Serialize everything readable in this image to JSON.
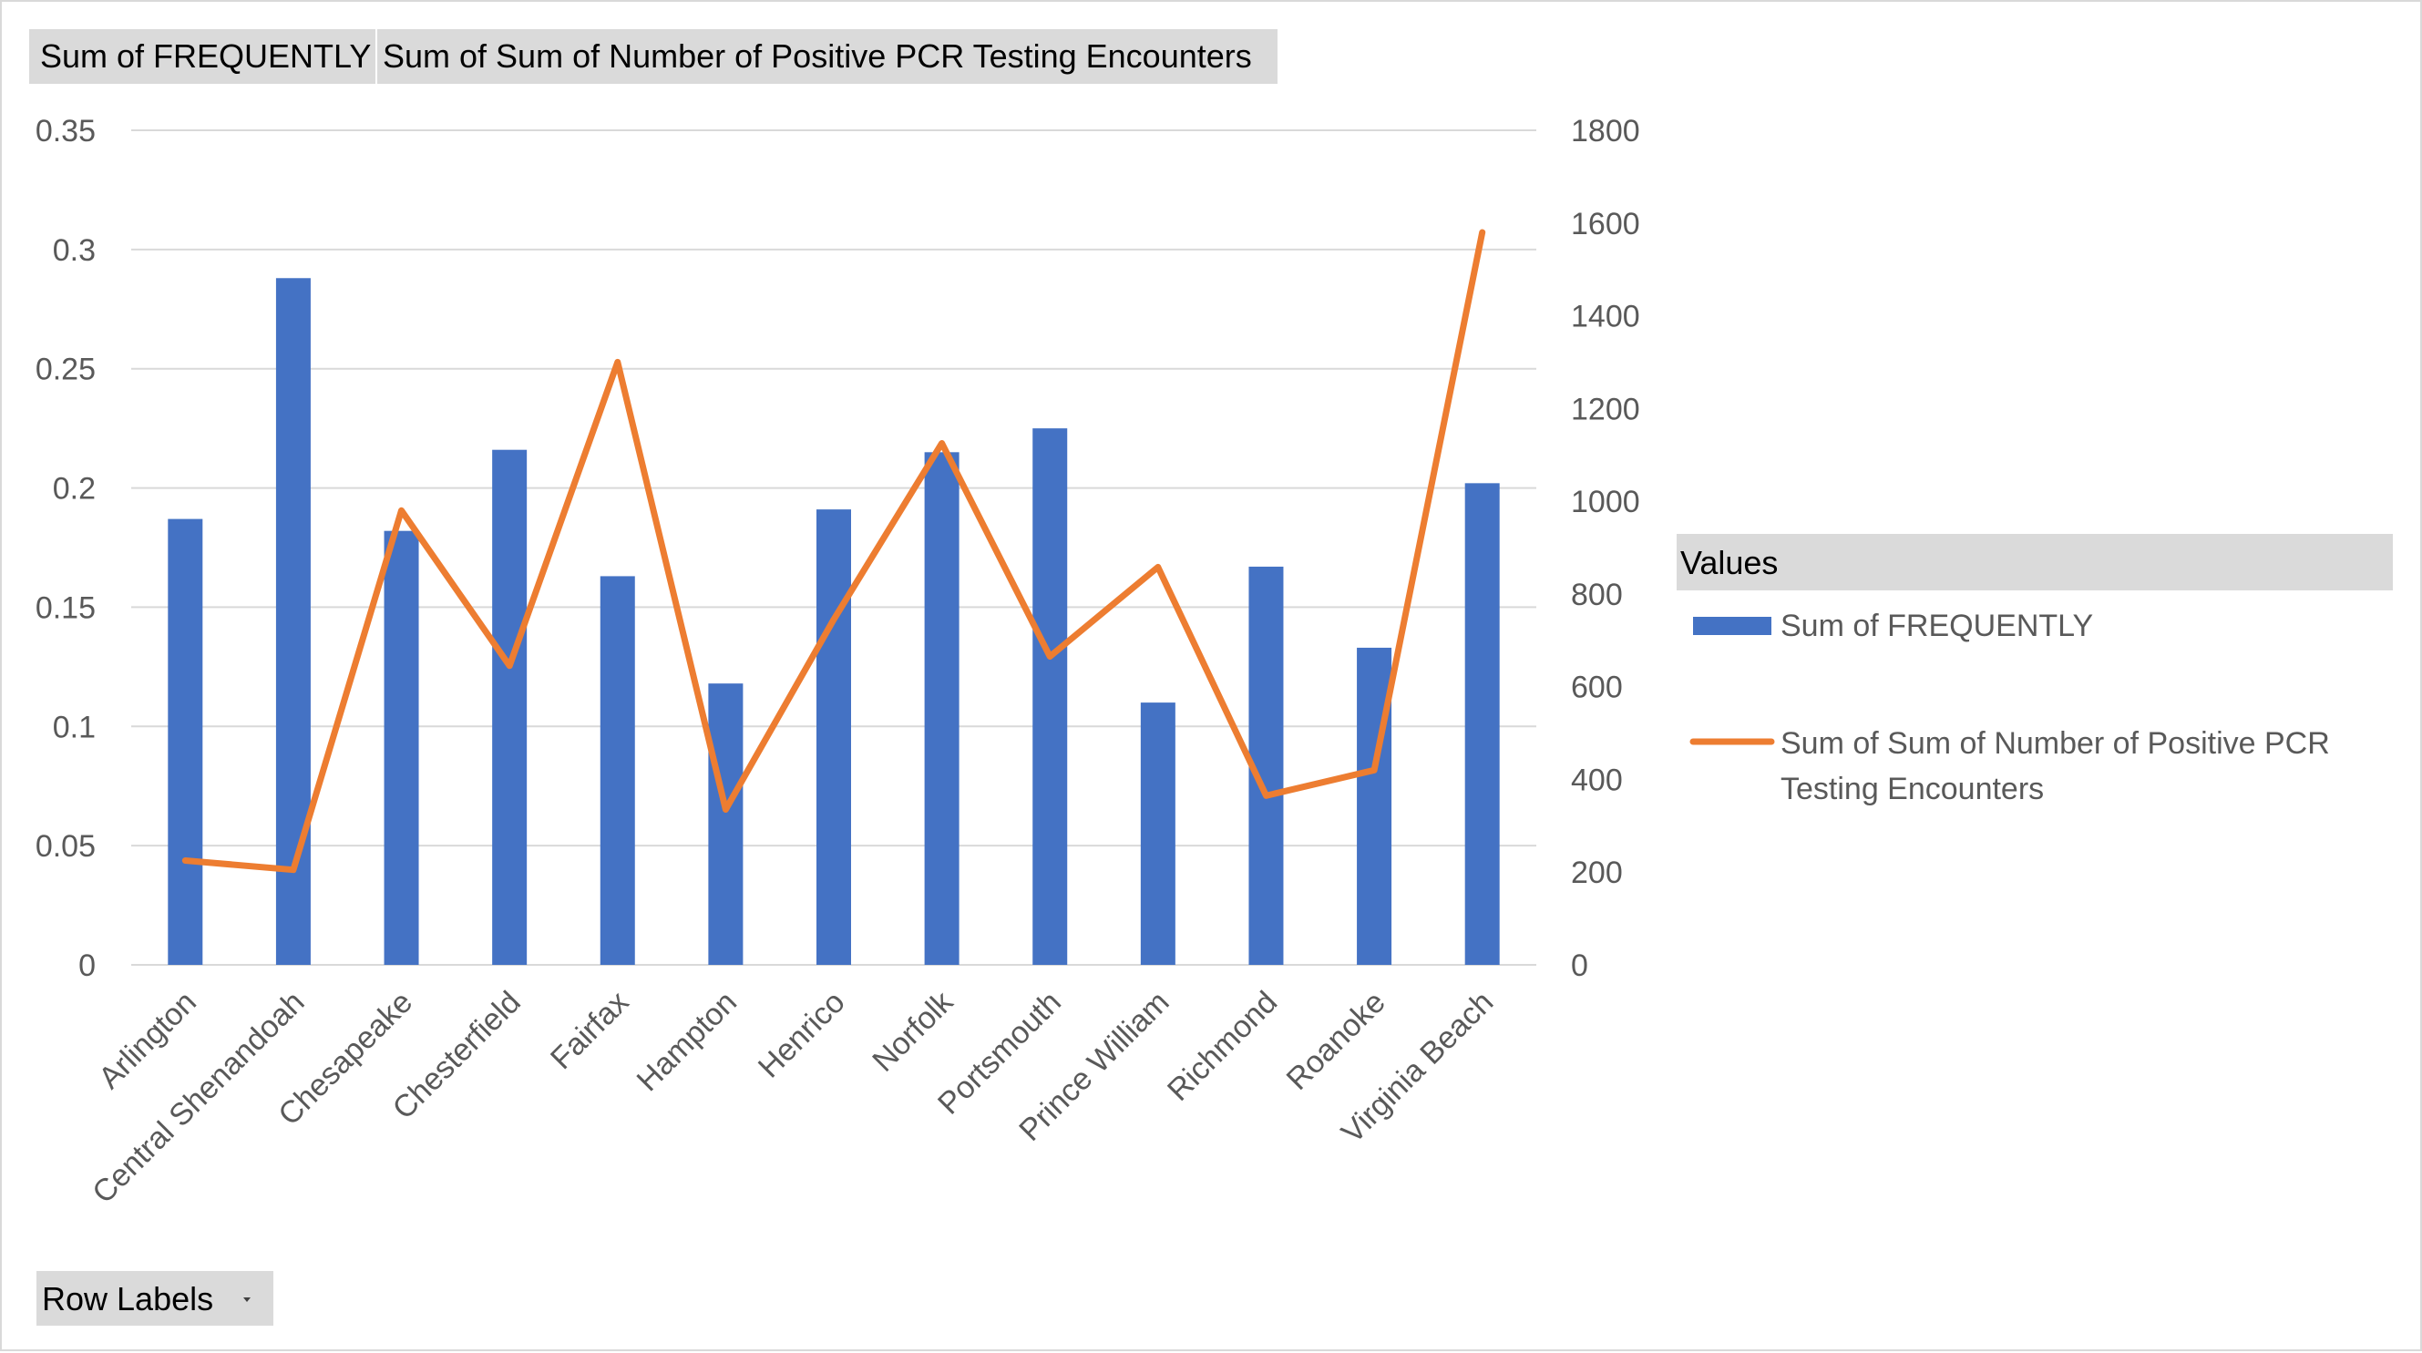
{
  "field_buttons": {
    "value_1": "Sum of FREQUENTLY",
    "value_2": "Sum of Sum of Number of Positive PCR Testing Encounters",
    "row_labels": "Row Labels",
    "row_labels_dropdown_icon": "dropdown-arrow-icon"
  },
  "legend": {
    "header": "Values",
    "entries": [
      "Sum of FREQUENTLY",
      "Sum of Sum of Number of Positive PCR Testing Encounters"
    ]
  },
  "colors": {
    "bar": "#4472c4",
    "line": "#ed7d31",
    "grid": "#d9d9d9",
    "field_button": "#dadada",
    "legend_header": "#dadada"
  },
  "chart_data": {
    "type": "bar",
    "combo": "bar + line (secondary axis)",
    "categories": [
      "Arlington",
      "Central Shenandoah",
      "Chesapeake",
      "Chesterfield",
      "Fairfax",
      "Hampton",
      "Henrico",
      "Norfolk",
      "Portsmouth",
      "Prince William",
      "Richmond",
      "Roanoke",
      "Virginia Beach"
    ],
    "series": [
      {
        "name": "Sum of FREQUENTLY",
        "type": "bar",
        "axis": "primary",
        "values": [
          0.187,
          0.288,
          0.182,
          0.216,
          0.163,
          0.118,
          0.191,
          0.215,
          0.225,
          0.11,
          0.167,
          0.133,
          0.202
        ]
      },
      {
        "name": "Sum of Sum of Number of Positive PCR Testing Encounters",
        "type": "line",
        "axis": "secondary",
        "values": [
          225,
          205,
          980,
          645,
          1300,
          335,
          745,
          1125,
          665,
          858,
          365,
          420,
          1580
        ]
      }
    ],
    "y_primary": {
      "ylim": [
        0,
        0.35
      ],
      "ticks": [
        "0",
        "0.05",
        "0.1",
        "0.15",
        "0.2",
        "0.25",
        "0.3",
        "0.35"
      ]
    },
    "y_secondary": {
      "ylim": [
        0,
        1800
      ],
      "ticks": [
        "0",
        "200",
        "400",
        "600",
        "800",
        "1000",
        "1200",
        "1400",
        "1600",
        "1800"
      ]
    },
    "grid": true,
    "legend_position": "right"
  }
}
